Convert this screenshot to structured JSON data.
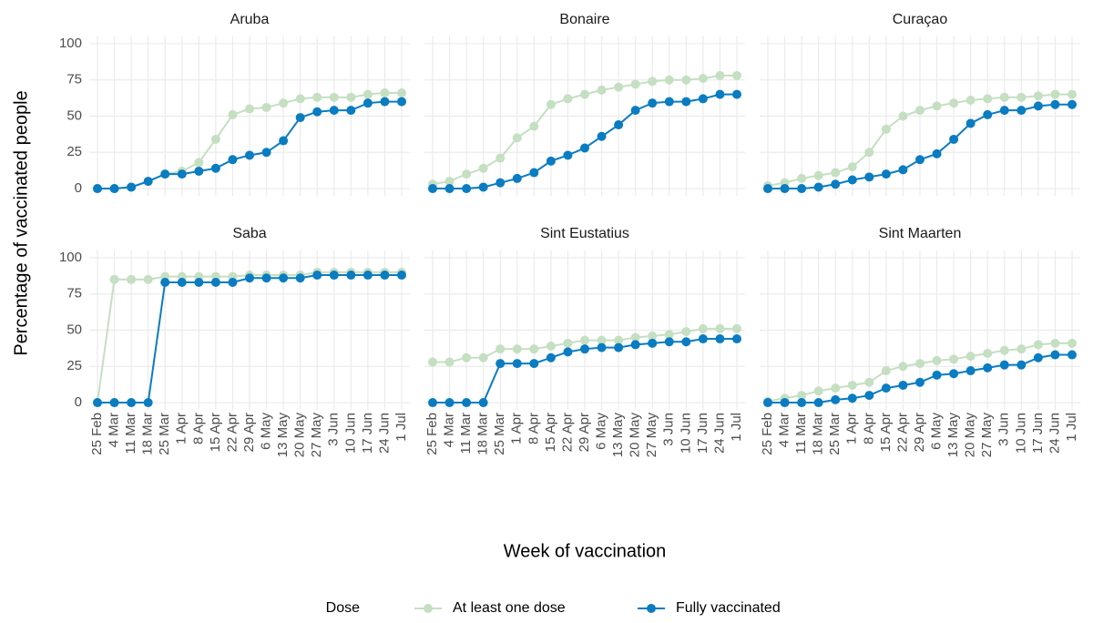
{
  "xlabel": "Week of vaccination",
  "ylabel": "Percentage of vaccinated people",
  "legend_title": "Dose",
  "series": [
    {
      "name": "At least one dose",
      "color": "#c5dfc2"
    },
    {
      "name": "Fully vaccinated",
      "color": "#0a7cc1"
    }
  ],
  "chart_data": [
    {
      "type": "line",
      "title": "Aruba",
      "ylim": [
        -5,
        105
      ],
      "yticks": [
        0,
        25,
        50,
        75,
        100
      ],
      "grid": true,
      "series": [
        {
          "values": [
            0,
            0,
            1,
            5,
            10,
            12,
            18,
            34,
            51,
            55,
            56,
            59,
            62,
            63,
            63,
            63,
            65,
            66,
            66
          ]
        },
        {
          "values": [
            0,
            0,
            1,
            5,
            10,
            10,
            12,
            14,
            20,
            23,
            25,
            33,
            49,
            53,
            54,
            54,
            59,
            60,
            60
          ]
        }
      ]
    },
    {
      "type": "line",
      "title": "Bonaire",
      "ylim": [
        -5,
        105
      ],
      "yticks": [
        0,
        25,
        50,
        75,
        100
      ],
      "grid": true,
      "series": [
        {
          "values": [
            3,
            5,
            10,
            14,
            21,
            35,
            43,
            58,
            62,
            65,
            68,
            70,
            72,
            74,
            75,
            75,
            76,
            78,
            78
          ]
        },
        {
          "values": [
            0,
            0,
            0,
            1,
            4,
            7,
            11,
            19,
            23,
            28,
            36,
            44,
            54,
            59,
            60,
            60,
            62,
            65,
            65
          ]
        }
      ]
    },
    {
      "type": "line",
      "title": "Curaçao",
      "ylim": [
        -5,
        105
      ],
      "yticks": [
        0,
        25,
        50,
        75,
        100
      ],
      "grid": true,
      "series": [
        {
          "values": [
            2,
            4,
            7,
            9,
            11,
            15,
            25,
            41,
            50,
            54,
            57,
            59,
            61,
            62,
            63,
            63,
            64,
            65,
            65
          ]
        },
        {
          "values": [
            0,
            0,
            0,
            1,
            3,
            6,
            8,
            10,
            13,
            20,
            24,
            34,
            45,
            51,
            54,
            54,
            57,
            58,
            58
          ]
        }
      ]
    },
    {
      "type": "line",
      "title": "Saba",
      "ylim": [
        -5,
        105
      ],
      "yticks": [
        0,
        25,
        50,
        75,
        100
      ],
      "grid": true,
      "categories": [
        "25 Feb",
        "4 Mar",
        "11 Mar",
        "18 Mar",
        "25 Mar",
        "1 Apr",
        "8 Apr",
        "15 Apr",
        "22 Apr",
        "29 Apr",
        "6 May",
        "13 May",
        "20 May",
        "27 May",
        "3 Jun",
        "10 Jun",
        "17 Jun",
        "24 Jun",
        "1 Jul"
      ],
      "series": [
        {
          "values": [
            0,
            85,
            85,
            85,
            87,
            87,
            87,
            87,
            87,
            88,
            88,
            88,
            88,
            90,
            90,
            90,
            90,
            90,
            90
          ]
        },
        {
          "values": [
            0,
            0,
            0,
            0,
            83,
            83,
            83,
            83,
            83,
            86,
            86,
            86,
            86,
            88,
            88,
            88,
            88,
            88,
            88
          ]
        }
      ]
    },
    {
      "type": "line",
      "title": "Sint Eustatius",
      "ylim": [
        -5,
        105
      ],
      "yticks": [
        0,
        25,
        50,
        75,
        100
      ],
      "grid": true,
      "categories": [
        "25 Feb",
        "4 Mar",
        "11 Mar",
        "18 Mar",
        "25 Mar",
        "1 Apr",
        "8 Apr",
        "15 Apr",
        "22 Apr",
        "29 Apr",
        "6 May",
        "13 May",
        "20 May",
        "27 May",
        "3 Jun",
        "10 Jun",
        "17 Jun",
        "24 Jun",
        "1 Jul"
      ],
      "series": [
        {
          "values": [
            28,
            28,
            31,
            31,
            37,
            37,
            37,
            39,
            41,
            43,
            43,
            43,
            45,
            46,
            47,
            49,
            51,
            51,
            51
          ]
        },
        {
          "values": [
            0,
            0,
            0,
            0,
            27,
            27,
            27,
            31,
            35,
            37,
            38,
            38,
            40,
            41,
            42,
            42,
            44,
            44,
            44
          ]
        }
      ]
    },
    {
      "type": "line",
      "title": "Sint Maarten",
      "ylim": [
        -5,
        105
      ],
      "yticks": [
        0,
        25,
        50,
        75,
        100
      ],
      "grid": true,
      "categories": [
        "25 Feb",
        "4 Mar",
        "11 Mar",
        "18 Mar",
        "25 Mar",
        "1 Apr",
        "8 Apr",
        "15 Apr",
        "22 Apr",
        "29 Apr",
        "6 May",
        "13 May",
        "20 May",
        "27 May",
        "3 Jun",
        "10 Jun",
        "17 Jun",
        "24 Jun",
        "1 Jul"
      ],
      "series": [
        {
          "values": [
            1,
            3,
            5,
            8,
            10,
            12,
            14,
            22,
            25,
            27,
            29,
            30,
            32,
            34,
            36,
            37,
            40,
            41,
            41
          ]
        },
        {
          "values": [
            0,
            0,
            0,
            0,
            2,
            3,
            5,
            10,
            12,
            14,
            19,
            20,
            22,
            24,
            26,
            26,
            31,
            33,
            33
          ]
        }
      ]
    }
  ]
}
